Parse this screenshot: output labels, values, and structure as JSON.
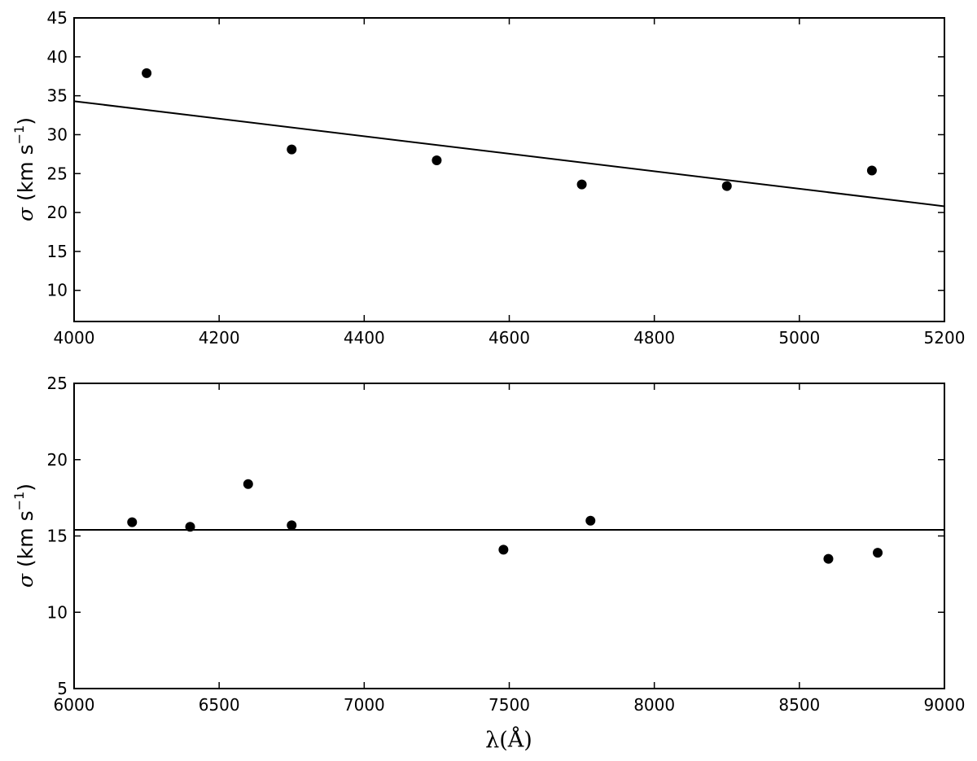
{
  "chart_data": [
    {
      "type": "scatter",
      "title": "",
      "xlabel": "",
      "ylabel": "σ (km s−1)",
      "ylabel_symbol": "σ",
      "ylabel_units": "(km s",
      "ylabel_exponent": "−1",
      "ylabel_close": ")",
      "xlim": [
        4000,
        5200
      ],
      "ylim": [
        6,
        45
      ],
      "xticks": [
        4000,
        4200,
        4400,
        4600,
        4800,
        5000,
        5200
      ],
      "yticks": [
        10,
        15,
        20,
        25,
        30,
        35,
        40,
        45
      ],
      "series": [
        {
          "kind": "points",
          "x": [
            4100,
            4300,
            4500,
            4700,
            4900,
            5100
          ],
          "y": [
            37.9,
            28.1,
            26.7,
            23.6,
            23.4,
            25.4
          ]
        },
        {
          "kind": "line",
          "x": [
            4000,
            5200
          ],
          "y": [
            34.3,
            20.8
          ]
        }
      ],
      "grid": false,
      "legend": "none"
    },
    {
      "type": "scatter",
      "title": "",
      "xlabel": "λ(Å)",
      "ylabel": "σ (km s−1)",
      "ylabel_symbol": "σ",
      "ylabel_units": "(km s",
      "ylabel_exponent": "−1",
      "ylabel_close": ")",
      "xlim": [
        6000,
        9000
      ],
      "ylim": [
        5,
        25
      ],
      "xticks": [
        6000,
        6500,
        7000,
        7500,
        8000,
        8500,
        9000
      ],
      "yticks": [
        5,
        10,
        15,
        20,
        25
      ],
      "series": [
        {
          "kind": "points",
          "x": [
            6200,
            6400,
            6600,
            6750,
            7480,
            7780,
            8600,
            8770
          ],
          "y": [
            15.9,
            15.6,
            18.4,
            15.7,
            14.1,
            16.0,
            13.5,
            13.9
          ]
        },
        {
          "kind": "line",
          "x": [
            6000,
            9000
          ],
          "y": [
            15.4,
            15.4
          ]
        }
      ],
      "grid": false,
      "legend": "none"
    }
  ]
}
